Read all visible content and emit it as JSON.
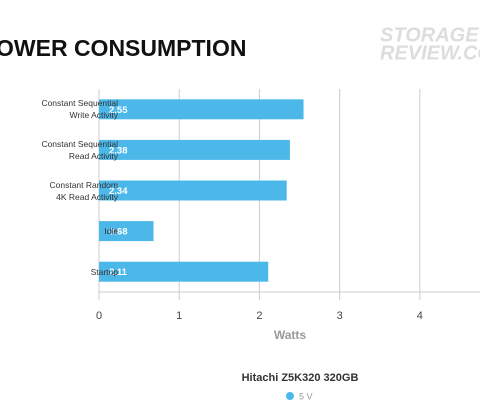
{
  "chart_data": {
    "type": "bar",
    "orientation": "horizontal",
    "title": "OWER CONSUMPTION",
    "logo": [
      "STORAGE",
      "REVIEW.CO"
    ],
    "categories": [
      "Constant Sequential\nWrite Activity",
      "Constant Sequential\nRead Activity",
      "Constant Random\n4K Read Activity",
      "Idle",
      "Startup"
    ],
    "series": [
      {
        "name": "5 V",
        "color": "#4cb8ea",
        "values": [
          2.55,
          2.38,
          2.34,
          0.68,
          2.11
        ]
      }
    ],
    "legend_title": "Hitachi Z5K320 320GB",
    "xlabel": "Watts",
    "xlim": [
      0,
      4.75
    ],
    "xticks": [
      0,
      1,
      2,
      3,
      4
    ],
    "grid": true
  }
}
